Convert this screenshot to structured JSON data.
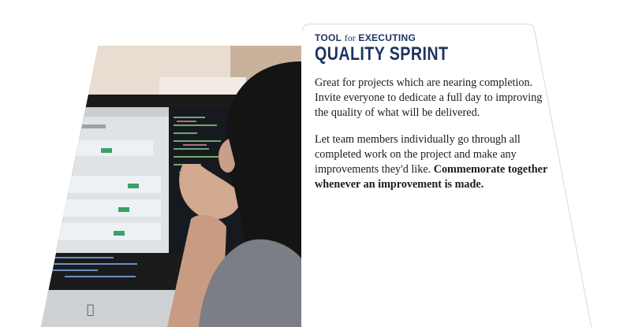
{
  "card": {
    "kicker_tool": "TOOL",
    "kicker_for": "for",
    "kicker_executing": "EXECUTING",
    "title": "QUALITY SPRINT",
    "paragraph1": "Great for projects which are nearing completion. Invite everyone to dedicate a full day to improving the quality of what will be delivered.",
    "paragraph2_regular": "Let team members individually go through all completed work on the project and make any improvements they'd like.",
    "paragraph2_bold": "Commemorate together whenever an improvement is made."
  },
  "colors": {
    "title": "#1d3461",
    "body_text": "#1c1c1c",
    "background": "#ffffff"
  },
  "photo": {
    "subject": "person-at-computer-photo",
    "icon": "apple-logo-icon"
  }
}
